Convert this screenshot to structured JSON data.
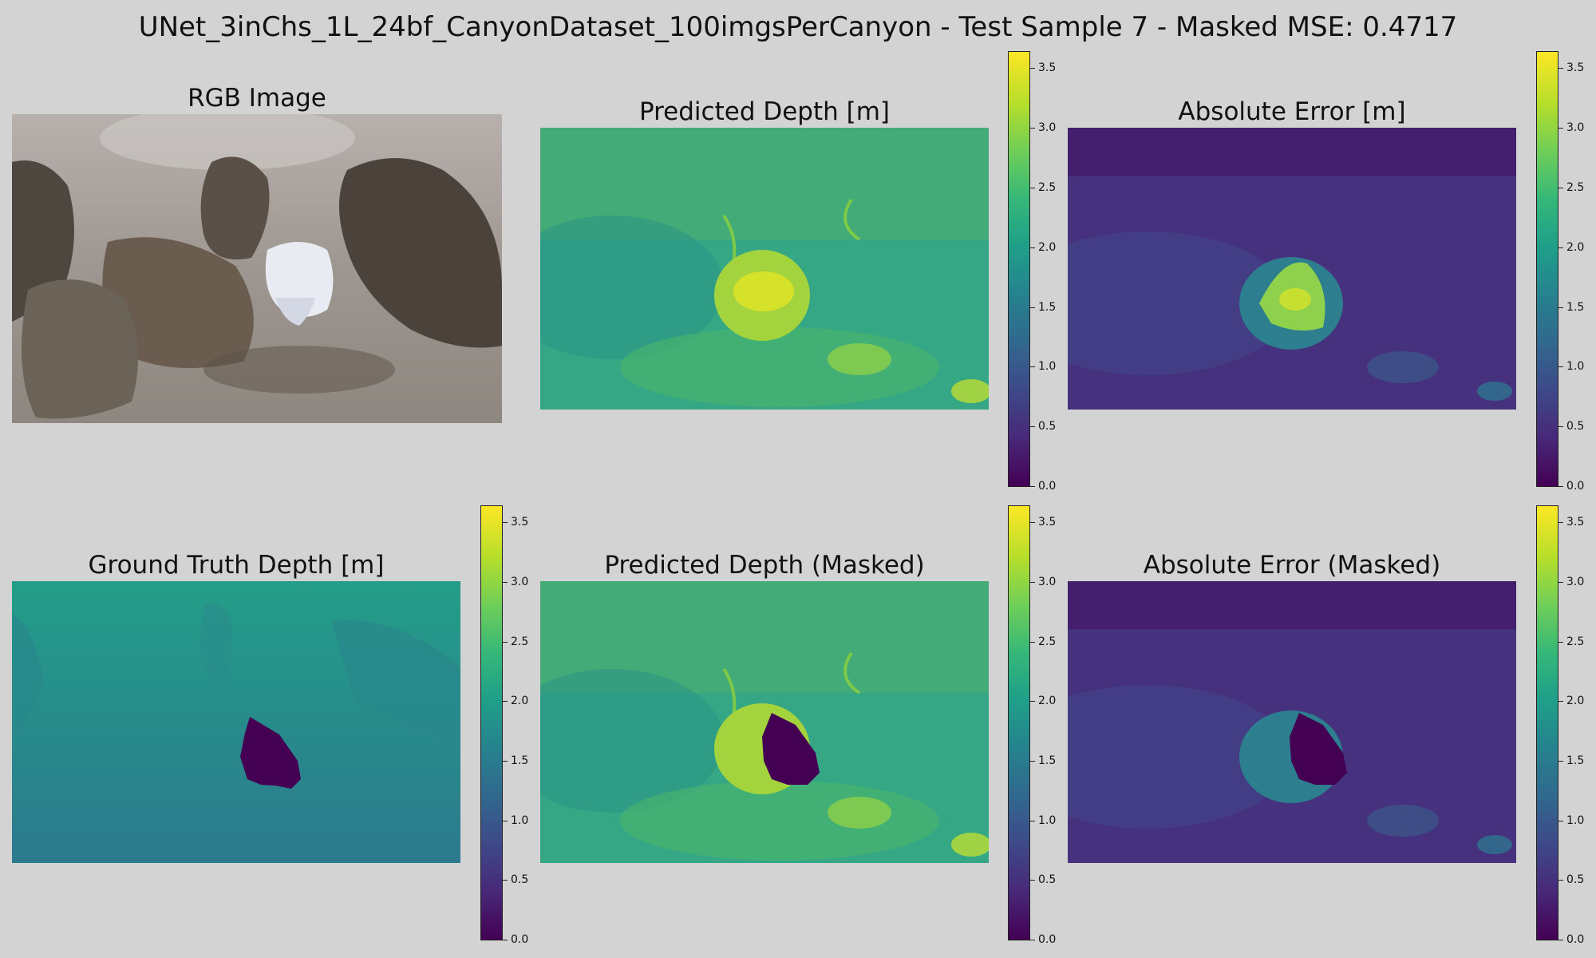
{
  "title": "UNet_3inChs_1L_24bf_CanyonDataset_100imgsPerCanyon - Test Sample 7 - Masked MSE: 0.4717",
  "panels": {
    "rgb": "RGB Image",
    "pred": "Predicted Depth [m]",
    "err": "Absolute Error [m]",
    "gt": "Ground Truth Depth [m]",
    "pred_masked": "Predicted Depth (Masked)",
    "err_masked": "Absolute Error (Masked)"
  },
  "chart_data": [
    {
      "type": "heatmap",
      "title": "RGB Image",
      "colormap": "rgb"
    },
    {
      "type": "heatmap",
      "title": "Predicted Depth [m]",
      "colormap": "viridis",
      "colorbar_range": [
        0,
        3.6
      ]
    },
    {
      "type": "heatmap",
      "title": "Absolute Error [m]",
      "colormap": "viridis",
      "colorbar_range": [
        0,
        3.6
      ]
    },
    {
      "type": "heatmap",
      "title": "Ground Truth Depth [m]",
      "colormap": "viridis",
      "colorbar_range": [
        0,
        3.6
      ]
    },
    {
      "type": "heatmap",
      "title": "Predicted Depth (Masked)",
      "colormap": "viridis",
      "colorbar_range": [
        0,
        3.6
      ]
    },
    {
      "type": "heatmap",
      "title": "Absolute Error (Masked)",
      "colormap": "viridis",
      "colorbar_range": [
        0,
        3.6
      ]
    }
  ],
  "colorbar": {
    "ticks": [
      "0.0",
      "0.5",
      "1.0",
      "1.5",
      "2.0",
      "2.5",
      "3.0",
      "3.5"
    ],
    "tick_values": [
      0,
      0.5,
      1.0,
      1.5,
      2.0,
      2.5,
      3.0,
      3.5
    ],
    "vmin": 0,
    "vmax": 3.65
  },
  "colors": {
    "background": "#d3d3d3",
    "mask": "#440154"
  }
}
